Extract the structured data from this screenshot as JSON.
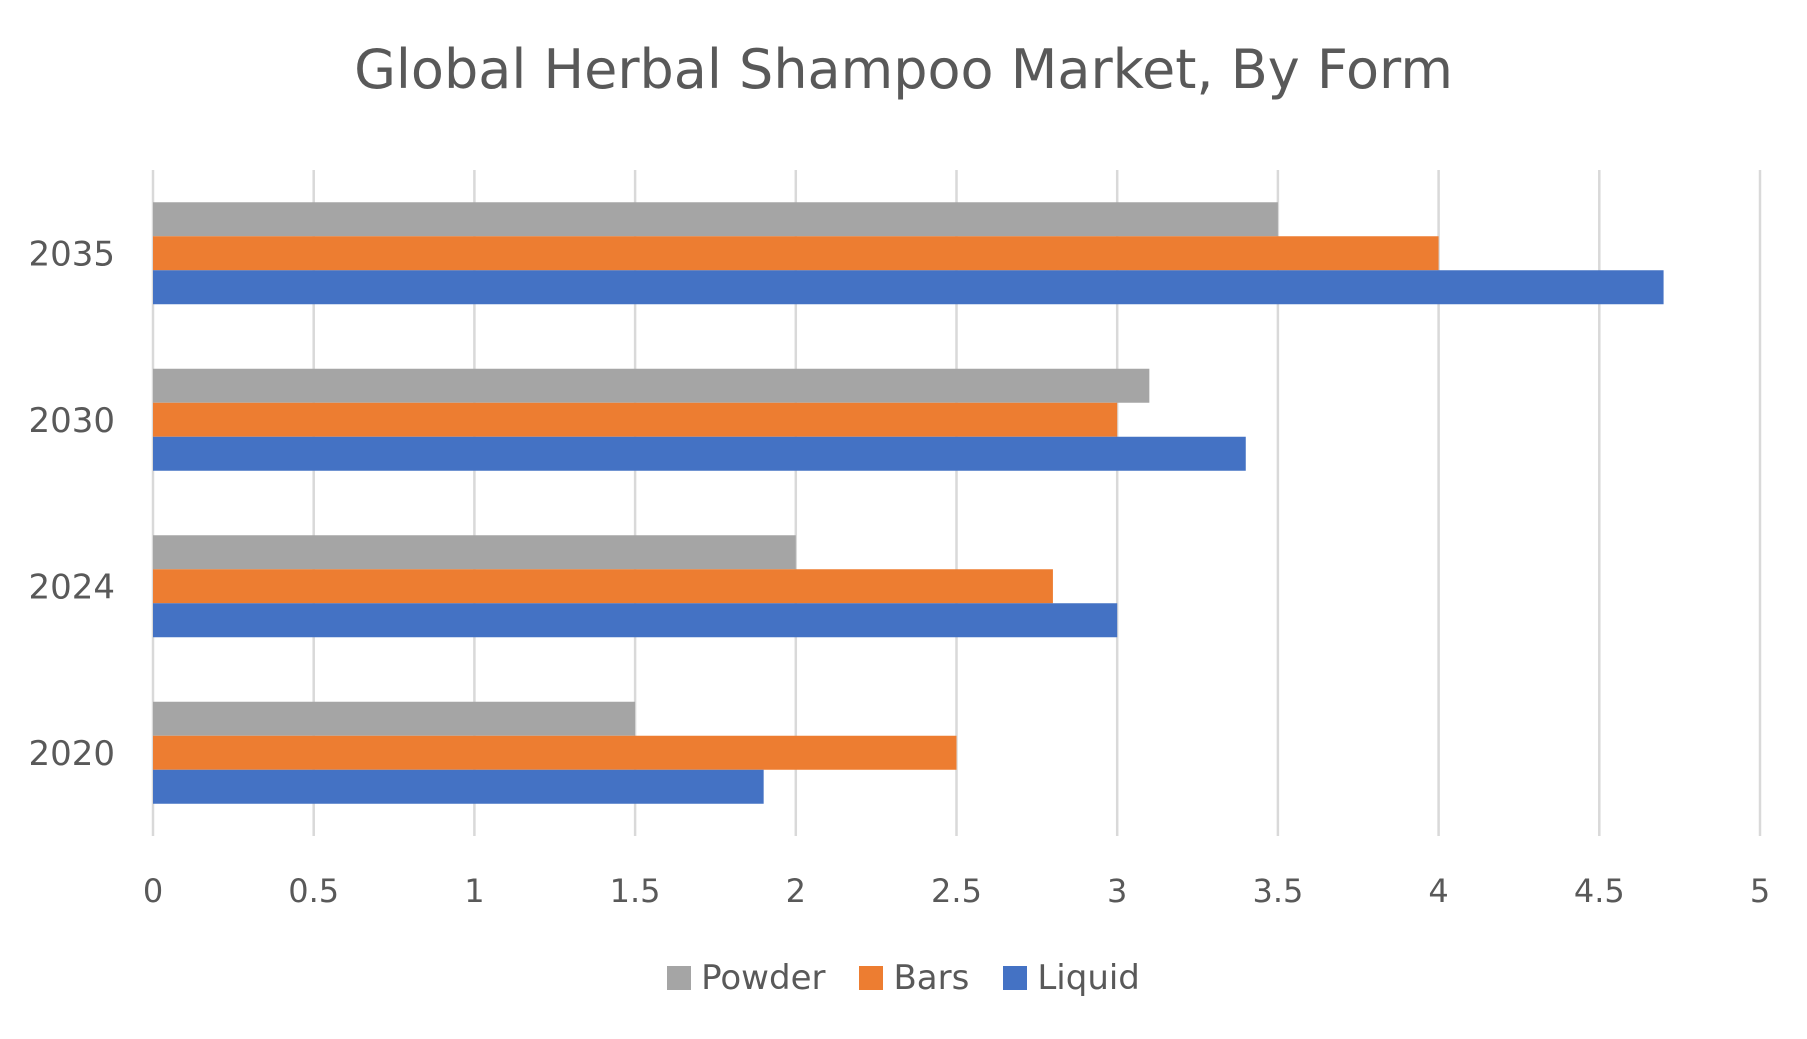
{
  "chart_data": {
    "type": "bar",
    "orientation": "horizontal",
    "title": "Global Herbal Shampoo Market, By Form",
    "categories": [
      "2020",
      "2024",
      "2030",
      "2035"
    ],
    "series": [
      {
        "name": "Powder",
        "color": "#A5A5A5",
        "values": [
          1.5,
          2.0,
          3.1,
          3.5
        ]
      },
      {
        "name": "Bars",
        "color": "#ED7D31",
        "values": [
          2.5,
          2.8,
          3.0,
          4.0
        ]
      },
      {
        "name": "Liquid",
        "color": "#4472C4",
        "values": [
          1.9,
          3.0,
          3.4,
          4.7
        ]
      }
    ],
    "xlim": [
      0,
      5
    ],
    "x_ticks": [
      "0",
      "0.5",
      "1",
      "1.5",
      "2",
      "2.5",
      "3",
      "3.5",
      "4",
      "4.5",
      "5"
    ],
    "grid": true,
    "legend_position": "bottom"
  }
}
